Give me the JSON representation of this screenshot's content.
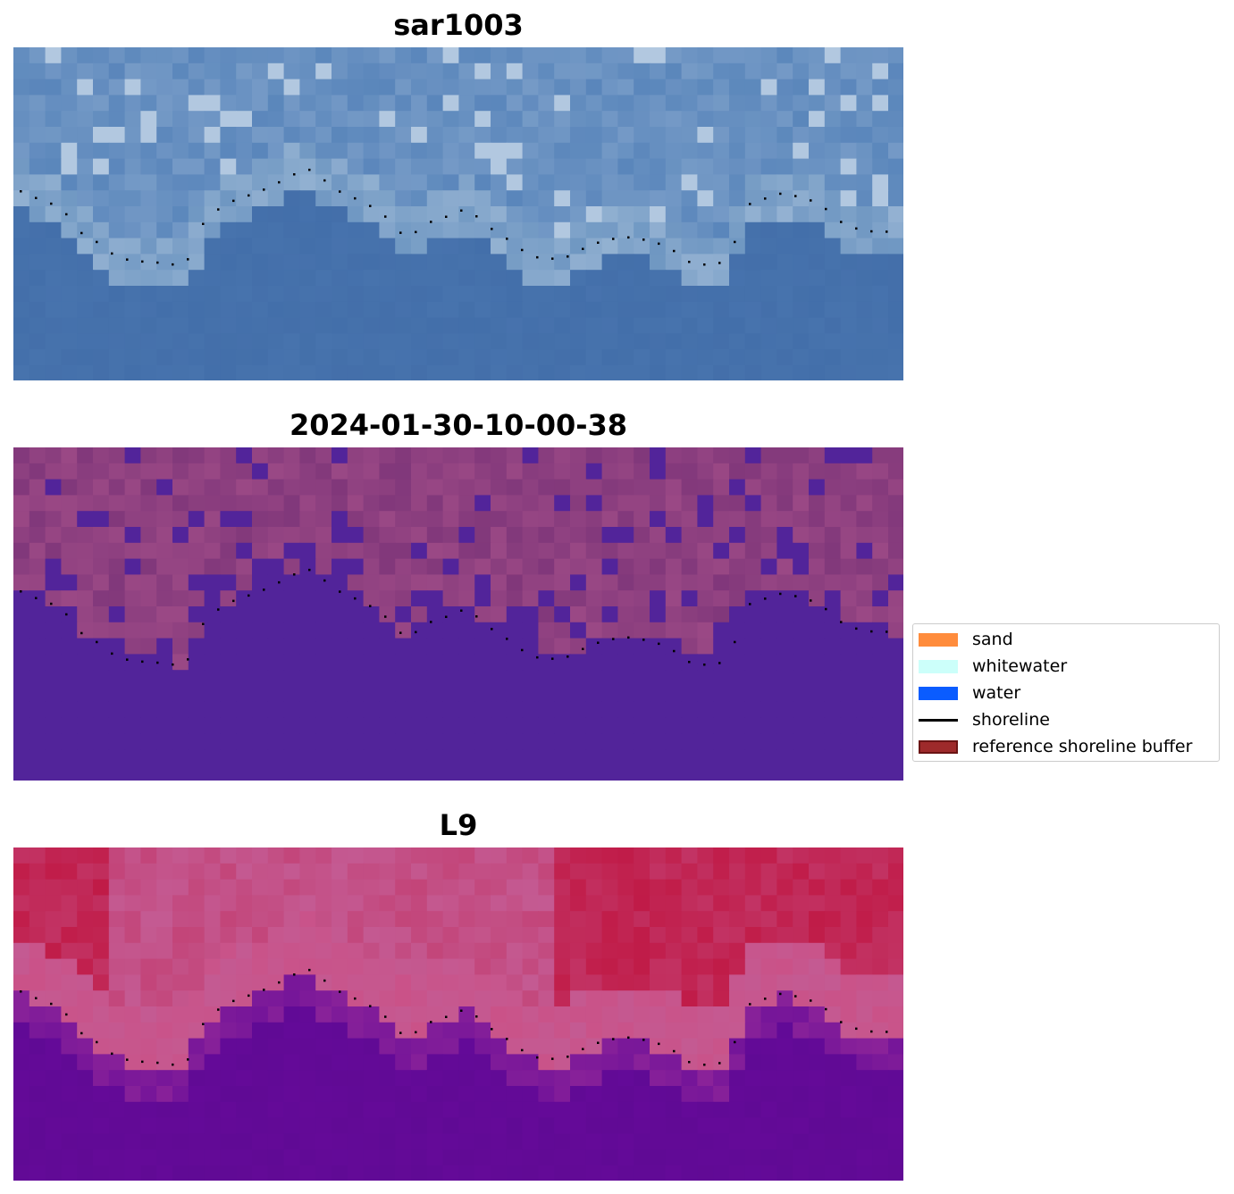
{
  "panels": [
    {
      "title": "sar1003",
      "style": "sar"
    },
    {
      "title": "2024-01-30-10-00-38",
      "style": "class"
    },
    {
      "title": "L9",
      "style": "l9"
    }
  ],
  "legend": {
    "items": [
      {
        "label": "sand",
        "kind": "patch",
        "color": "#ff8c3c"
      },
      {
        "label": "whitewater",
        "kind": "patch",
        "color": "#ccfffa"
      },
      {
        "label": "water",
        "kind": "patch",
        "color": "#0a5cff"
      },
      {
        "label": "shoreline",
        "kind": "line",
        "color": "#000000"
      },
      {
        "label": "reference shoreline buffer",
        "kind": "patch",
        "color": "#9e2a2b",
        "edge": "#6b1414"
      }
    ]
  },
  "colors": {
    "sar_water": "#4773ad",
    "sar_land": "#6f97c2",
    "sar_bright": "#d8e4f0",
    "class_water": "#52249a",
    "class_land": "#7d3579",
    "class_land_light": "#b2588f",
    "l9_water": "#640a98",
    "l9_land": "#c45a92",
    "l9_red": "#c0143f",
    "shoreline_dots": "#000000"
  }
}
